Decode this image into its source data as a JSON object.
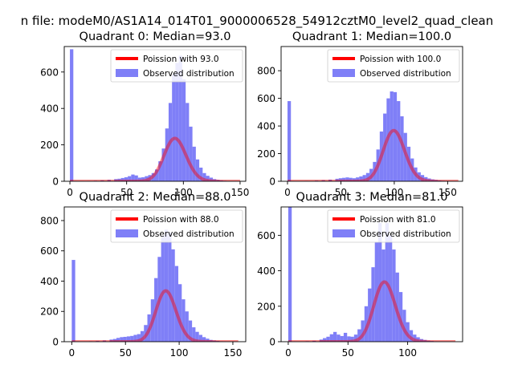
{
  "suptitle": "n file: modeM0/AS1A14_014T01_9000006528_54912cztM0_level2_quad_clean",
  "colors": {
    "hist": "#7f7ff7",
    "curve": "#ff0000",
    "curve_alpha": 0.45,
    "axis": "#000000"
  },
  "chart_data": [
    {
      "type": "bar",
      "title": "Quadrant 0: Median=93.0",
      "median": 93.0,
      "xlim": [
        -5,
        155
      ],
      "ylim": [
        0,
        740
      ],
      "xticks": [
        0,
        50,
        100,
        150
      ],
      "yticks": [
        0,
        200,
        400,
        600
      ],
      "legend": [
        "Poission with 93.0",
        "Observed distribution"
      ],
      "bin_width": 3,
      "hist": [
        [
          0,
          725
        ],
        [
          3,
          2
        ],
        [
          9,
          2
        ],
        [
          15,
          2
        ],
        [
          21,
          3
        ],
        [
          27,
          5
        ],
        [
          33,
          8
        ],
        [
          39,
          12
        ],
        [
          42,
          14
        ],
        [
          45,
          18
        ],
        [
          48,
          22
        ],
        [
          51,
          28
        ],
        [
          54,
          37
        ],
        [
          57,
          32
        ],
        [
          60,
          20
        ],
        [
          63,
          22
        ],
        [
          66,
          28
        ],
        [
          69,
          34
        ],
        [
          72,
          45
        ],
        [
          75,
          65
        ],
        [
          78,
          110
        ],
        [
          81,
          180
        ],
        [
          84,
          290
        ],
        [
          87,
          430
        ],
        [
          90,
          590
        ],
        [
          93,
          650
        ],
        [
          96,
          690
        ],
        [
          99,
          560
        ],
        [
          102,
          430
        ],
        [
          105,
          300
        ],
        [
          108,
          190
        ],
        [
          111,
          120
        ],
        [
          114,
          75
        ],
        [
          117,
          45
        ],
        [
          120,
          30
        ],
        [
          123,
          20
        ],
        [
          126,
          12
        ],
        [
          129,
          8
        ],
        [
          132,
          5
        ],
        [
          135,
          3
        ],
        [
          138,
          2
        ],
        [
          141,
          1
        ],
        [
          144,
          1
        ]
      ],
      "curve_x": [
        0,
        150
      ],
      "curve_scale": 5700
    },
    {
      "type": "bar",
      "title": "Quadrant 1: Median=100.0",
      "median": 100.0,
      "xlim": [
        -6,
        164
      ],
      "ylim": [
        0,
        975
      ],
      "xticks": [
        0,
        50,
        100,
        150
      ],
      "yticks": [
        0,
        200,
        400,
        600,
        800
      ],
      "legend": [
        "Poission with 100.0",
        "Observed distribution"
      ],
      "bin_width": 3.2,
      "hist": [
        [
          0,
          580
        ],
        [
          3.2,
          2
        ],
        [
          16,
          3
        ],
        [
          25.6,
          5
        ],
        [
          32,
          8
        ],
        [
          38.4,
          12
        ],
        [
          44.8,
          18
        ],
        [
          48,
          22
        ],
        [
          51.2,
          25
        ],
        [
          54.4,
          28
        ],
        [
          57.6,
          25
        ],
        [
          60.8,
          22
        ],
        [
          64,
          28
        ],
        [
          67.2,
          35
        ],
        [
          70.4,
          45
        ],
        [
          73.6,
          60
        ],
        [
          76.8,
          90
        ],
        [
          80,
          140
        ],
        [
          83.2,
          230
        ],
        [
          86.4,
          360
        ],
        [
          89.6,
          490
        ],
        [
          92.8,
          600
        ],
        [
          96,
          650
        ],
        [
          99.2,
          645
        ],
        [
          102.4,
          580
        ],
        [
          105.6,
          470
        ],
        [
          108.8,
          350
        ],
        [
          112,
          250
        ],
        [
          115.2,
          165
        ],
        [
          118.4,
          100
        ],
        [
          121.6,
          65
        ],
        [
          124.8,
          45
        ],
        [
          128,
          30
        ],
        [
          131.2,
          20
        ],
        [
          134.4,
          14
        ],
        [
          137.6,
          10
        ],
        [
          140.8,
          6
        ],
        [
          144,
          4
        ],
        [
          147.2,
          2
        ]
      ],
      "curve_x": [
        0,
        160
      ],
      "curve_scale": 9200
    },
    {
      "type": "bar",
      "title": "Quadrant 2: Median=88.0",
      "median": 88.0,
      "xlim": [
        -7,
        162
      ],
      "ylim": [
        0,
        890
      ],
      "xticks": [
        0,
        50,
        100,
        150
      ],
      "yticks": [
        0,
        200,
        400,
        600,
        800
      ],
      "legend": [
        "Poission with 88.0",
        "Observed distribution"
      ],
      "bin_width": 3.2,
      "hist": [
        [
          0,
          540
        ],
        [
          3.2,
          2
        ],
        [
          16,
          3
        ],
        [
          22.4,
          5
        ],
        [
          28.8,
          8
        ],
        [
          35.2,
          14
        ],
        [
          38.4,
          18
        ],
        [
          41.6,
          25
        ],
        [
          44.8,
          30
        ],
        [
          48,
          32
        ],
        [
          51.2,
          35
        ],
        [
          54.4,
          38
        ],
        [
          57.6,
          45
        ],
        [
          60.8,
          50
        ],
        [
          64,
          70
        ],
        [
          67.2,
          110
        ],
        [
          70.4,
          180
        ],
        [
          73.6,
          280
        ],
        [
          76.8,
          420
        ],
        [
          80,
          560
        ],
        [
          83.2,
          700
        ],
        [
          86.4,
          740
        ],
        [
          89.6,
          720
        ],
        [
          92.8,
          610
        ],
        [
          96,
          500
        ],
        [
          99.2,
          380
        ],
        [
          102.4,
          280
        ],
        [
          105.6,
          200
        ],
        [
          108.8,
          140
        ],
        [
          112,
          95
        ],
        [
          115.2,
          65
        ],
        [
          118.4,
          45
        ],
        [
          121.6,
          30
        ],
        [
          124.8,
          20
        ],
        [
          128,
          12
        ],
        [
          131.2,
          8
        ],
        [
          134.4,
          5
        ],
        [
          137.6,
          3
        ],
        [
          140.8,
          2
        ]
      ],
      "curve_x": [
        0,
        155
      ],
      "curve_scale": 7900
    },
    {
      "type": "bar",
      "title": "Quadrant 3: Median=81.0",
      "median": 81.0,
      "xlim": [
        -6,
        146
      ],
      "ylim": [
        0,
        760
      ],
      "xticks": [
        0,
        50,
        100
      ],
      "yticks": [
        0,
        200,
        400,
        600
      ],
      "legend": [
        "Poission with 81.0",
        "Observed distribution"
      ],
      "bin_width": 2.9,
      "hist": [
        [
          0,
          760
        ],
        [
          2.9,
          2
        ],
        [
          14.5,
          3
        ],
        [
          20.3,
          5
        ],
        [
          26.1,
          12
        ],
        [
          29,
          20
        ],
        [
          31.9,
          28
        ],
        [
          34.8,
          42
        ],
        [
          37.7,
          55
        ],
        [
          40.6,
          40
        ],
        [
          43.5,
          32
        ],
        [
          46.4,
          50
        ],
        [
          49.3,
          30
        ],
        [
          52.2,
          28
        ],
        [
          55.1,
          40
        ],
        [
          58,
          70
        ],
        [
          60.9,
          120
        ],
        [
          63.8,
          200
        ],
        [
          66.7,
          300
        ],
        [
          69.6,
          420
        ],
        [
          72.5,
          560
        ],
        [
          75.4,
          670
        ],
        [
          78.3,
          520
        ],
        [
          81.2,
          670
        ],
        [
          84.1,
          600
        ],
        [
          87,
          520
        ],
        [
          89.9,
          390
        ],
        [
          92.8,
          280
        ],
        [
          95.7,
          180
        ],
        [
          98.6,
          110
        ],
        [
          101.5,
          65
        ],
        [
          104.4,
          40
        ],
        [
          107.3,
          25
        ],
        [
          110.2,
          15
        ],
        [
          113.1,
          10
        ],
        [
          116,
          6
        ],
        [
          118.9,
          4
        ],
        [
          121.8,
          2
        ],
        [
          124.7,
          1
        ],
        [
          127.6,
          1
        ]
      ],
      "curve_x": [
        0,
        140
      ],
      "curve_scale": 7600
    }
  ]
}
